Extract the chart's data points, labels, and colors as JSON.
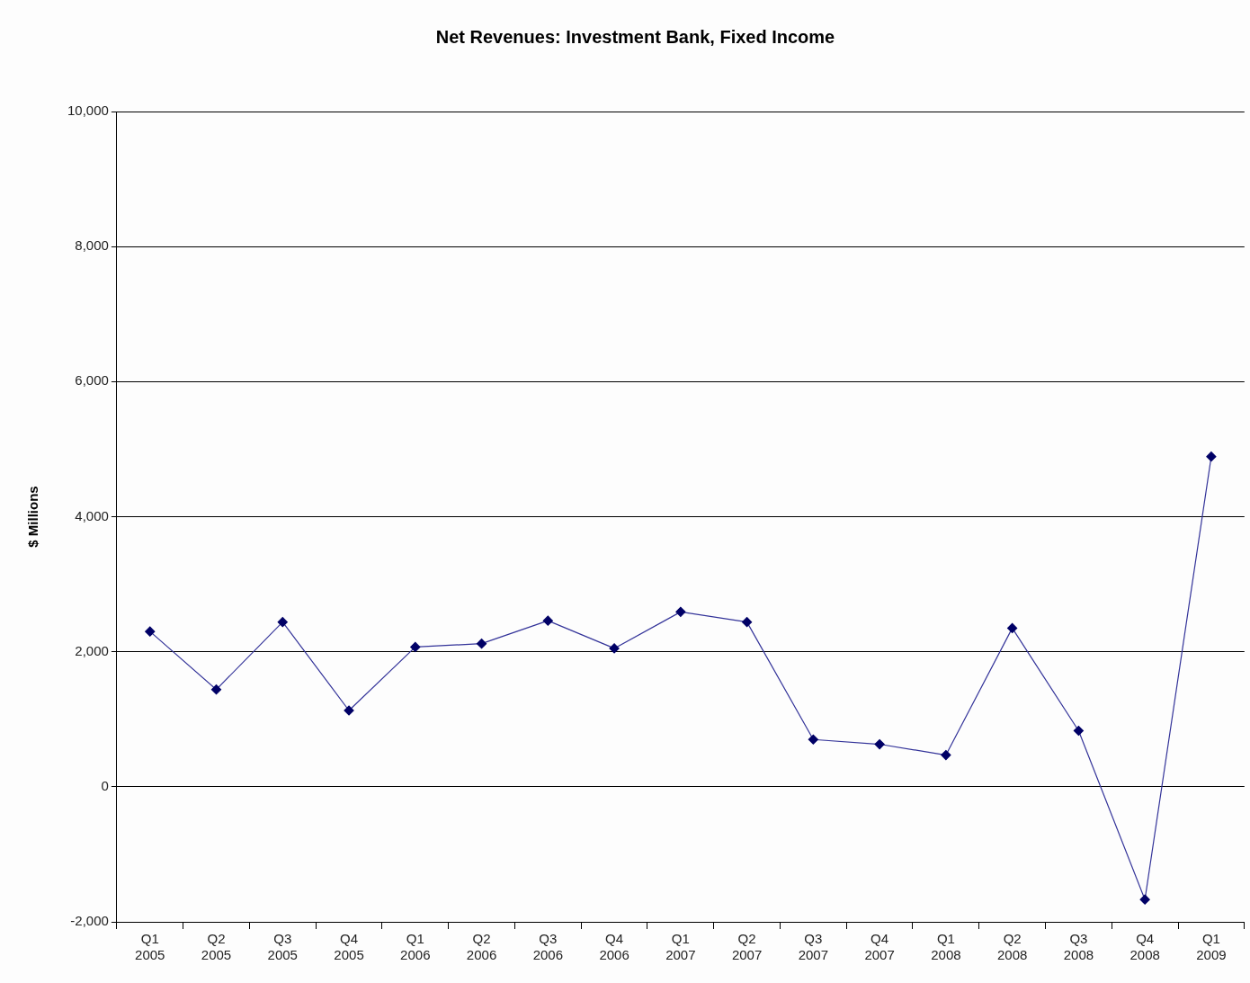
{
  "chart_data": {
    "type": "line",
    "title": "Net Revenues: Investment Bank, Fixed Income",
    "ylabel": "$ Millions",
    "categories": [
      "Q1\n2005",
      "Q2\n2005",
      "Q3\n2005",
      "Q4\n2005",
      "Q1\n2006",
      "Q2\n2006",
      "Q3\n2006",
      "Q4\n2006",
      "Q1\n2007",
      "Q2\n2007",
      "Q3\n2007",
      "Q4\n2007",
      "Q1\n2008",
      "Q2\n2008",
      "Q3\n2008",
      "Q4\n2008",
      "Q1\n2009"
    ],
    "series": [
      {
        "color": "#333399",
        "values": [
          2300,
          1440,
          2440,
          1130,
          2070,
          2120,
          2460,
          2050,
          2590,
          2440,
          700,
          630,
          470,
          2350,
          830,
          -1670,
          4890
        ]
      }
    ],
    "ylim": [
      -2000,
      10000
    ],
    "yticks": [
      {
        "value": -2000,
        "label": "-2,000"
      },
      0,
      {
        "value": 2000,
        "label": "2,000"
      },
      {
        "value": 4000,
        "label": "4,000"
      },
      {
        "value": 6000,
        "label": "6,000"
      },
      {
        "value": 8000,
        "label": "8,000"
      },
      {
        "value": 10000,
        "label": "10,000"
      }
    ],
    "grid": "y",
    "legend": false,
    "marker": "diamond",
    "line_style": "solid"
  }
}
